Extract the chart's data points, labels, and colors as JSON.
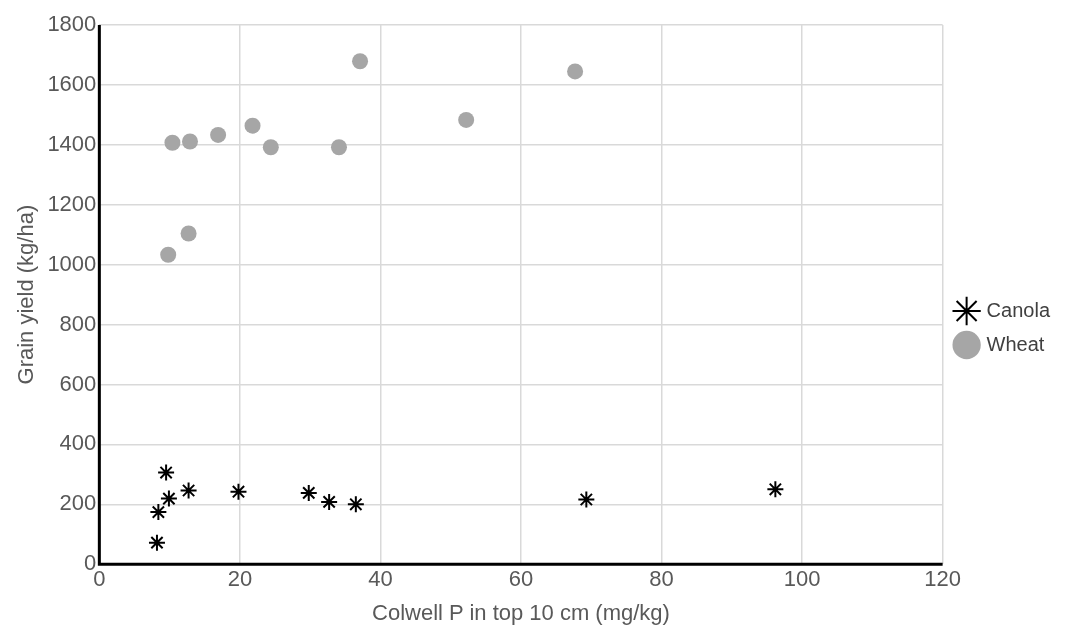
{
  "chart_data": {
    "type": "scatter",
    "xlabel": "Colwell P in top 10 cm (mg/kg)",
    "ylabel": "Grain yield (kg/ha)",
    "xlim": [
      0,
      120
    ],
    "xticks": [
      0,
      20,
      40,
      60,
      80,
      100,
      120
    ],
    "ylim": [
      0,
      1800
    ],
    "yticks": [
      0,
      200,
      400,
      600,
      800,
      1000,
      1200,
      1400,
      1600,
      1800
    ],
    "grid": true,
    "legend": "right",
    "series": [
      {
        "name": "Canola",
        "color": "#000000",
        "marker": "cross",
        "x": [
          8.2,
          8.4,
          9.5,
          9.9,
          12.7,
          19.8,
          29.8,
          32.7,
          36.5,
          69.3,
          96.2
        ],
        "values": [
          72,
          174,
          306,
          219,
          246,
          242,
          238,
          208,
          200,
          216,
          250
        ]
      },
      {
        "name": "Wheat",
        "color": "#a6a6a6",
        "marker": "circle",
        "x": [
          9.8,
          10.4,
          12.7,
          12.9,
          16.9,
          21.8,
          24.4,
          34.1,
          37.1,
          52.2,
          67.7
        ],
        "values": [
          1033,
          1407,
          1104,
          1411,
          1433,
          1464,
          1392,
          1392,
          1679,
          1483,
          1645
        ]
      }
    ]
  }
}
